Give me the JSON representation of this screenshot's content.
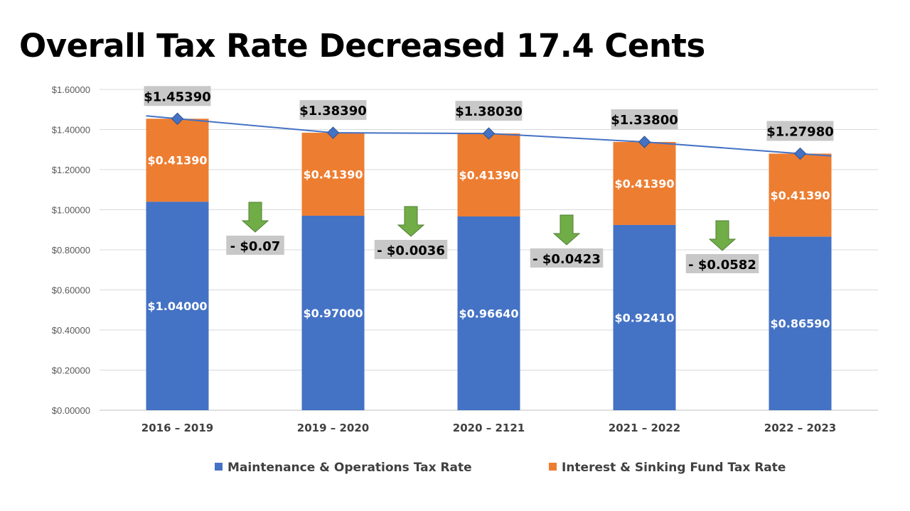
{
  "page": {
    "title": "Overall Tax Rate Decreased 17.4 Cents"
  },
  "chart_data": {
    "type": "bar",
    "stacked": true,
    "title": "Overall Tax Rate Decreased 17.4 Cents",
    "xlabel": "",
    "ylabel": "",
    "ylim": [
      0,
      1.6
    ],
    "y_ticks": [
      "$0.00000",
      "$0.20000",
      "$0.40000",
      "$0.60000",
      "$0.80000",
      "$1.00000",
      "$1.20000",
      "$1.40000",
      "$1.60000"
    ],
    "grid": true,
    "legend_position": "bottom",
    "categories": [
      "2016 – 2019",
      "2019 – 2020",
      "2020 – 2121",
      "2021 – 2022",
      "2022 – 2023"
    ],
    "series": [
      {
        "name": "Maintenance & Operations Tax Rate",
        "color": "#4472C4",
        "values": [
          1.04,
          0.97,
          0.9664,
          0.9241,
          0.8659
        ],
        "labels": [
          "$1.04000",
          "$0.97000",
          "$0.96640",
          "$0.92410",
          "$0.86590"
        ]
      },
      {
        "name": "Interest & Sinking Fund Tax Rate",
        "color": "#ED7D31",
        "values": [
          0.4139,
          0.4139,
          0.4139,
          0.4139,
          0.4139
        ],
        "labels": [
          "$0.41390",
          "$0.41390",
          "$0.41390",
          "$0.41390",
          "$0.41390"
        ]
      }
    ],
    "totals": {
      "type": "line",
      "color": "#4472C4",
      "marker": "diamond",
      "values": [
        1.4539,
        1.3839,
        1.3803,
        1.338,
        1.2798
      ],
      "labels": [
        "$1.45390",
        "$1.38390",
        "$1.38030",
        "$1.33800",
        "$1.27980"
      ]
    },
    "decreases": {
      "arrow_color": "#70AD47",
      "label_background": "#C8C8C8",
      "labels": [
        "- $0.07",
        "- $0.0036",
        "- $0.0423",
        "- $0.0582"
      ]
    }
  }
}
